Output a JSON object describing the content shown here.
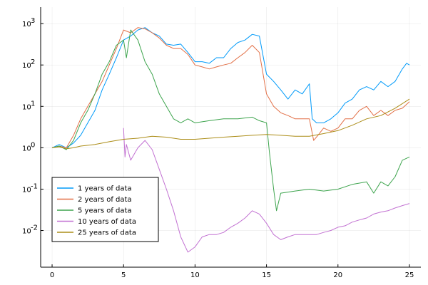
{
  "chart_data": {
    "type": "line",
    "title": "",
    "xlabel": "",
    "ylabel": "",
    "xlim": [
      -0.8,
      25.8
    ],
    "ylim": [
      0.0013,
      2500
    ],
    "yscale": "log",
    "grid": true,
    "legend_position": "bottom-left",
    "xticks": [
      {
        "value": 0,
        "label": "0"
      },
      {
        "value": 5,
        "label": "5"
      },
      {
        "value": 10,
        "label": "10"
      },
      {
        "value": 15,
        "label": "15"
      },
      {
        "value": 20,
        "label": "20"
      },
      {
        "value": 25,
        "label": "25"
      }
    ],
    "yticks": [
      {
        "value": 0.01,
        "base": "10",
        "exp": "-2"
      },
      {
        "value": 0.1,
        "base": "10",
        "exp": "-1"
      },
      {
        "value": 1,
        "base": "10",
        "exp": "0"
      },
      {
        "value": 10,
        "base": "10",
        "exp": "1"
      },
      {
        "value": 100,
        "base": "10",
        "exp": "2"
      },
      {
        "value": 1000,
        "base": "10",
        "exp": "3"
      }
    ],
    "series": [
      {
        "name": "1 years of data",
        "color": "#009af9",
        "x": [
          0,
          0.5,
          1,
          1.5,
          2,
          2.5,
          3,
          3.5,
          4,
          4.5,
          5,
          5.5,
          6,
          6.5,
          7,
          7.5,
          8,
          8.5,
          9,
          9.5,
          10,
          10.5,
          11,
          11.5,
          12,
          12.5,
          13,
          13.5,
          14,
          14.5,
          15,
          15.5,
          16,
          16.5,
          17,
          17.5,
          18,
          18.2,
          18.5,
          19,
          19.5,
          20,
          20.5,
          21,
          21.5,
          22,
          22.5,
          23,
          23.5,
          24,
          24.5,
          24.8,
          25
        ],
        "y": [
          1,
          1.2,
          1.0,
          1.3,
          2,
          4,
          8,
          25,
          60,
          150,
          400,
          500,
          700,
          800,
          600,
          500,
          320,
          300,
          320,
          200,
          120,
          120,
          110,
          150,
          150,
          250,
          350,
          400,
          550,
          500,
          60,
          40,
          25,
          15,
          25,
          20,
          35,
          5,
          4,
          4,
          5,
          7,
          12,
          15,
          25,
          30,
          25,
          40,
          30,
          40,
          80,
          110,
          100
        ]
      },
      {
        "name": "2 years of data",
        "color": "#e26f46",
        "x": [
          0,
          0.5,
          1,
          1.5,
          2,
          2.5,
          3,
          3.5,
          4,
          4.5,
          5,
          5.5,
          6,
          6.5,
          7,
          7.5,
          8,
          8.5,
          9,
          9.5,
          10,
          10.5,
          11,
          11.5,
          12,
          12.5,
          13,
          13.5,
          14,
          14.5,
          15,
          15.5,
          16,
          16.5,
          17,
          17.5,
          18,
          18.3,
          18.6,
          19,
          19.5,
          20,
          20.5,
          21,
          21.5,
          22,
          22.5,
          23,
          23.5,
          24,
          24.5,
          25
        ],
        "y": [
          1,
          1.1,
          1.0,
          2,
          5,
          10,
          20,
          40,
          100,
          250,
          700,
          600,
          800,
          750,
          600,
          450,
          300,
          250,
          250,
          180,
          100,
          90,
          80,
          90,
          100,
          110,
          150,
          200,
          300,
          200,
          20,
          10,
          7,
          6,
          5,
          5,
          5,
          1.5,
          2,
          3,
          2.5,
          3,
          5,
          5,
          8,
          10,
          6,
          8,
          6,
          8,
          9,
          13
        ]
      },
      {
        "name": "5 years of data",
        "color": "#3da44d",
        "x": [
          0,
          0.5,
          1,
          1.5,
          2,
          2.5,
          3,
          3.5,
          4,
          4.5,
          5,
          5.2,
          5.5,
          6,
          6.5,
          7,
          7.5,
          8,
          8.5,
          9,
          9.5,
          10,
          11,
          12,
          13,
          14,
          14.5,
          15,
          15.2,
          15.5,
          15.7,
          16,
          17,
          18,
          19,
          20,
          21,
          22,
          22.5,
          23,
          23.5,
          24,
          24.5,
          25
        ],
        "y": [
          1,
          1.1,
          0.9,
          1.5,
          4,
          8,
          20,
          60,
          120,
          300,
          400,
          150,
          700,
          400,
          120,
          60,
          20,
          10,
          5,
          4,
          5,
          4,
          4.5,
          5,
          5,
          5.5,
          4.5,
          4,
          0.8,
          0.1,
          0.03,
          0.08,
          0.09,
          0.1,
          0.09,
          0.1,
          0.13,
          0.15,
          0.08,
          0.15,
          0.12,
          0.2,
          0.5,
          0.6
        ]
      },
      {
        "name": "10 years of data",
        "color": "#c271d2",
        "x": [
          5,
          5.1,
          5.2,
          5.5,
          6,
          6.5,
          7,
          7.5,
          8,
          8.5,
          9,
          9.5,
          10,
          10.5,
          11,
          11.5,
          12,
          12.5,
          13,
          13.5,
          14,
          14.5,
          15,
          15.5,
          16,
          16.5,
          17,
          17.5,
          18,
          18.5,
          19,
          19.5,
          20,
          20.5,
          21,
          21.5,
          22,
          22.5,
          23,
          23.5,
          24,
          24.5,
          25
        ],
        "y": [
          3,
          0.6,
          1.2,
          0.5,
          1,
          1.5,
          0.9,
          0.3,
          0.1,
          0.03,
          0.007,
          0.003,
          0.004,
          0.007,
          0.008,
          0.008,
          0.009,
          0.012,
          0.015,
          0.02,
          0.03,
          0.025,
          0.015,
          0.008,
          0.006,
          0.007,
          0.008,
          0.008,
          0.008,
          0.008,
          0.009,
          0.01,
          0.012,
          0.013,
          0.016,
          0.018,
          0.02,
          0.025,
          0.028,
          0.03,
          0.035,
          0.04,
          0.045
        ]
      },
      {
        "name": "25 years of data",
        "color": "#ac8d18",
        "x": [
          0,
          0.5,
          1,
          1.5,
          2,
          3,
          4,
          5,
          6,
          7,
          8,
          9,
          10,
          11,
          12,
          13,
          14,
          15,
          16,
          17,
          18,
          19,
          20,
          21,
          22,
          23,
          24,
          25
        ],
        "y": [
          1,
          1.05,
          0.95,
          1.0,
          1.1,
          1.2,
          1.4,
          1.6,
          1.7,
          1.9,
          1.8,
          1.6,
          1.6,
          1.7,
          1.8,
          1.9,
          2.0,
          2.1,
          2.0,
          1.9,
          1.9,
          2.2,
          2.6,
          3.5,
          5,
          6,
          9,
          15
        ]
      }
    ]
  }
}
